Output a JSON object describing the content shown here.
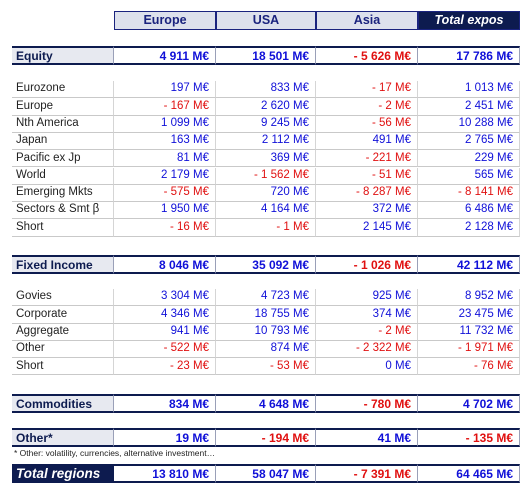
{
  "header": {
    "columns": [
      "Europe",
      "USA",
      "Asia",
      "Total expos"
    ]
  },
  "sections": [
    {
      "title": "Equity",
      "totals": [
        "4 911 M€",
        "18 501 M€",
        "- 5 626 M€",
        "17 786 M€"
      ],
      "rows": [
        {
          "label": "Eurozone",
          "values": [
            "197 M€",
            "833 M€",
            "- 17 M€",
            "1 013 M€"
          ]
        },
        {
          "label": "Europe",
          "values": [
            "- 167 M€",
            "2 620 M€",
            "- 2 M€",
            "2 451 M€"
          ]
        },
        {
          "label": "Nth America",
          "values": [
            "1 099 M€",
            "9 245 M€",
            "- 56 M€",
            "10 288 M€"
          ]
        },
        {
          "label": "Japan",
          "values": [
            "163 M€",
            "2 112 M€",
            "491 M€",
            "2 765 M€"
          ]
        },
        {
          "label": "Pacific ex Jp",
          "values": [
            "81 M€",
            "369 M€",
            "- 221 M€",
            "229 M€"
          ]
        },
        {
          "label": "World",
          "values": [
            "2 179 M€",
            "- 1 562 M€",
            "- 51 M€",
            "565 M€"
          ]
        },
        {
          "label": "Emerging Mkts",
          "values": [
            "- 575 M€",
            "720 M€",
            "- 8 287 M€",
            "- 8 141 M€"
          ]
        },
        {
          "label": "Sectors & Smt β",
          "values": [
            "1 950 M€",
            "4 164 M€",
            "372 M€",
            "6 486 M€"
          ]
        },
        {
          "label": "Short",
          "values": [
            "- 16 M€",
            "- 1 M€",
            "2 145 M€",
            "2 128 M€"
          ]
        }
      ]
    },
    {
      "title": "Fixed Income",
      "totals": [
        "8 046 M€",
        "35 092 M€",
        "- 1 026 M€",
        "42 112 M€"
      ],
      "rows": [
        {
          "label": "Govies",
          "values": [
            "3 304 M€",
            "4 723 M€",
            "925 M€",
            "8 952 M€"
          ]
        },
        {
          "label": "Corporate",
          "values": [
            "4 346 M€",
            "18 755 M€",
            "374 M€",
            "23 475 M€"
          ]
        },
        {
          "label": "Aggregate",
          "values": [
            "941 M€",
            "10 793 M€",
            "- 2 M€",
            "11 732 M€"
          ]
        },
        {
          "label": "Other",
          "values": [
            "- 522 M€",
            "874 M€",
            "- 2 322 M€",
            "- 1 971 M€"
          ]
        },
        {
          "label": "Short",
          "values": [
            "- 23 M€",
            "- 53 M€",
            "0 M€",
            "- 76 M€"
          ]
        }
      ]
    },
    {
      "title": "Commodities",
      "totals": [
        "834 M€",
        "4 648 M€",
        "- 780 M€",
        "4 702 M€"
      ],
      "rows": []
    },
    {
      "title": "Other*",
      "totals": [
        "19 M€",
        "- 194 M€",
        "41 M€",
        "- 135 M€"
      ],
      "rows": []
    }
  ],
  "footnote": "* Other: volatility, currencies, alternative investment…",
  "total": {
    "label": "Total regions",
    "values": [
      "13 810 M€",
      "58 047 M€",
      "- 7 391 M€",
      "64 465 M€"
    ]
  }
}
